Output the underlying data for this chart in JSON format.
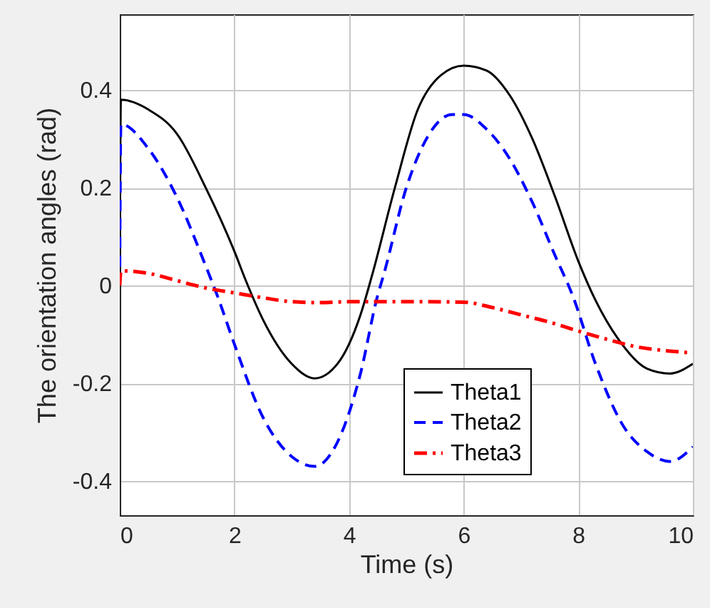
{
  "chart_data": {
    "type": "line",
    "xlabel": "Time (s)",
    "ylabel": "The orientation angles (rad)",
    "xlim": [
      0,
      10
    ],
    "xticks": [
      0,
      2,
      4,
      6,
      8,
      10
    ],
    "ylim": [
      -0.47,
      0.555
    ],
    "yticks": [
      -0.4,
      -0.2,
      0,
      0.2,
      0.4
    ],
    "grid": true,
    "legend": "bottom right",
    "marker": "none",
    "series": [
      {
        "name": "Theta1",
        "color": "#000000",
        "line_style": "solid",
        "x": [
          0,
          0.02,
          0.5,
          1,
          1.5,
          2,
          2.2,
          2.5,
          3,
          3.4,
          3.8,
          4.2,
          4.4,
          4.8,
          5.2,
          5.6,
          6,
          6.4,
          6.8,
          7.2,
          7.6,
          8,
          8.3,
          8.7,
          9.2,
          9.6,
          10
        ],
        "values": [
          0,
          0.38,
          0.36,
          0.31,
          0.2,
          0.07,
          0.01,
          -0.07,
          -0.16,
          -0.19,
          -0.16,
          -0.06,
          0.02,
          0.2,
          0.36,
          0.43,
          0.45,
          0.44,
          0.39,
          0.3,
          0.18,
          0.05,
          -0.03,
          -0.11,
          -0.17,
          -0.18,
          -0.16
        ]
      },
      {
        "name": "Theta2",
        "color": "#0000ff",
        "line_style": "dashed",
        "x": [
          0,
          0.02,
          0.5,
          1,
          1.5,
          1.7,
          2,
          2.5,
          3,
          3.4,
          3.8,
          4.2,
          4.5,
          4.6,
          5,
          5.4,
          5.8,
          6,
          6.4,
          6.8,
          7.2,
          7.6,
          7.9,
          8.3,
          8.8,
          9.2,
          9.6,
          10
        ],
        "values": [
          0,
          0.33,
          0.28,
          0.18,
          0.04,
          -0.02,
          -0.12,
          -0.27,
          -0.35,
          -0.37,
          -0.32,
          -0.18,
          -0.02,
          0.02,
          0.2,
          0.31,
          0.35,
          0.35,
          0.32,
          0.26,
          0.17,
          0.06,
          -0.02,
          -0.16,
          -0.29,
          -0.34,
          -0.36,
          -0.33
        ]
      },
      {
        "name": "Theta3",
        "color": "#ff0000",
        "line_style": "dashdot",
        "x": [
          0,
          0.02,
          0.5,
          1,
          1.5,
          2,
          2.5,
          3,
          3.5,
          4,
          5,
          6,
          6.5,
          7,
          7.5,
          8,
          8.5,
          9,
          9.5,
          10
        ],
        "values": [
          0,
          0.03,
          0.025,
          0.01,
          -0.005,
          -0.015,
          -0.025,
          -0.033,
          -0.035,
          -0.033,
          -0.033,
          -0.034,
          -0.045,
          -0.06,
          -0.075,
          -0.093,
          -0.11,
          -0.125,
          -0.133,
          -0.138
        ]
      }
    ]
  }
}
